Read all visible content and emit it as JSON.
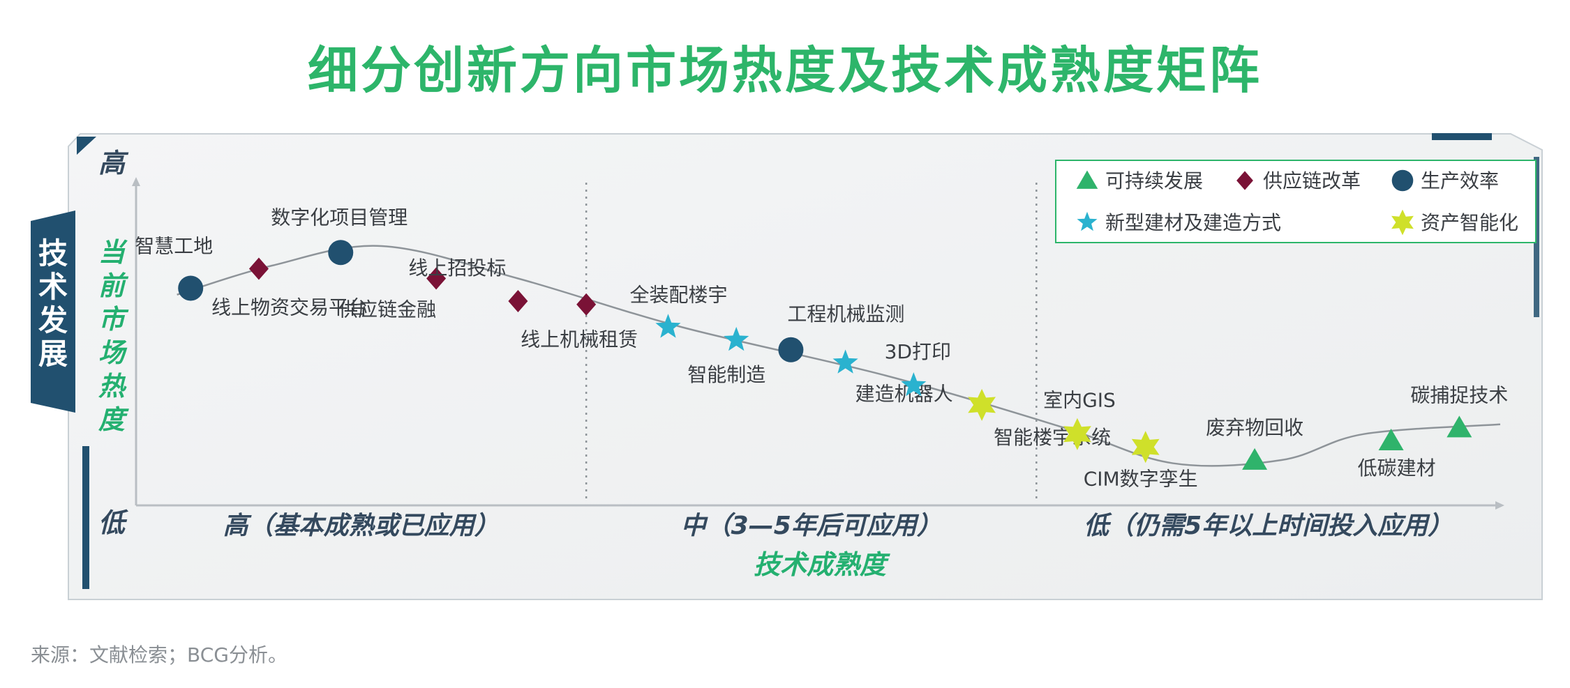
{
  "title": "细分创新方向市场热度及技术成熟度矩阵",
  "source": "来源：文献检索；BCG分析。",
  "colors": {
    "title_green": "#2db56a",
    "axis_green": "#24b070",
    "navy": "#21506f",
    "sustain": "#2fb36b",
    "supply": "#7a1236",
    "efficiency": "#21506f",
    "materials": "#2ab2cf",
    "smart": "#cfe02a"
  },
  "chart_data": {
    "type": "scatter",
    "title": "细分创新方向市场热度及技术成熟度矩阵",
    "side_label": "技术发展",
    "ylabel": "当前市场热度",
    "xlabel": "技术成熟度",
    "y_high": "高",
    "y_low": "低",
    "x_range": [
      0,
      100
    ],
    "y_range": [
      0,
      100
    ],
    "x_zones": [
      {
        "label": "高（基本成熟或已应用）",
        "from": 0,
        "to": 33
      },
      {
        "label": "中（3—5年后可应用）",
        "from": 33,
        "to": 66
      },
      {
        "label": "低（仍需5年以上时间投入应用）",
        "from": 66,
        "to": 100
      }
    ],
    "legend": [
      {
        "key": "sustain",
        "label": "可持续发展",
        "marker": "triangle"
      },
      {
        "key": "supply",
        "label": "供应链改革",
        "marker": "diamond"
      },
      {
        "key": "efficiency",
        "label": "生产效率",
        "marker": "circle"
      },
      {
        "key": "materials",
        "label": "新型建材及建造方式",
        "marker": "star"
      },
      {
        "key": "smart",
        "label": "资产智能化",
        "marker": "burst"
      }
    ],
    "curve": [
      [
        3,
        65
      ],
      [
        10,
        74
      ],
      [
        18,
        80
      ],
      [
        28,
        70
      ],
      [
        40,
        55
      ],
      [
        55,
        40
      ],
      [
        68,
        24
      ],
      [
        76,
        13
      ],
      [
        84,
        14
      ],
      [
        90,
        22
      ],
      [
        100,
        25
      ]
    ],
    "points": [
      {
        "label": "智慧工地",
        "series": "efficiency",
        "x": 4,
        "y": 67
      },
      {
        "label": "线上物资交易平台",
        "series": "supply",
        "x": 9,
        "y": 73
      },
      {
        "label": "数字化项目管理",
        "series": "efficiency",
        "x": 15,
        "y": 78
      },
      {
        "label": "供应链金融",
        "series": "supply",
        "x": 22,
        "y": 70
      },
      {
        "label": "线上招投标",
        "series": "supply",
        "x": 28,
        "y": 63
      },
      {
        "label": "线上机械租赁",
        "series": "supply",
        "x": 33,
        "y": 62
      },
      {
        "label": "全装配楼宇",
        "series": "materials",
        "x": 39,
        "y": 55
      },
      {
        "label": "智能制造",
        "series": "materials",
        "x": 44,
        "y": 51
      },
      {
        "label": "工程机械监测",
        "series": "efficiency",
        "x": 48,
        "y": 48
      },
      {
        "label": "建造机器人",
        "series": "materials",
        "x": 52,
        "y": 44
      },
      {
        "label": "3D打印",
        "series": "materials",
        "x": 57,
        "y": 37
      },
      {
        "label": "智能楼宇系统",
        "series": "smart",
        "x": 62,
        "y": 31
      },
      {
        "label": "室内GIS",
        "series": "smart",
        "x": 69,
        "y": 22
      },
      {
        "label": "CIM数字孪生",
        "series": "smart",
        "x": 74,
        "y": 18
      },
      {
        "label": "废弃物回收",
        "series": "sustain",
        "x": 82,
        "y": 14
      },
      {
        "label": "低碳建材",
        "series": "sustain",
        "x": 92,
        "y": 20
      },
      {
        "label": "碳捕捉技术",
        "series": "sustain",
        "x": 97,
        "y": 24
      }
    ]
  }
}
